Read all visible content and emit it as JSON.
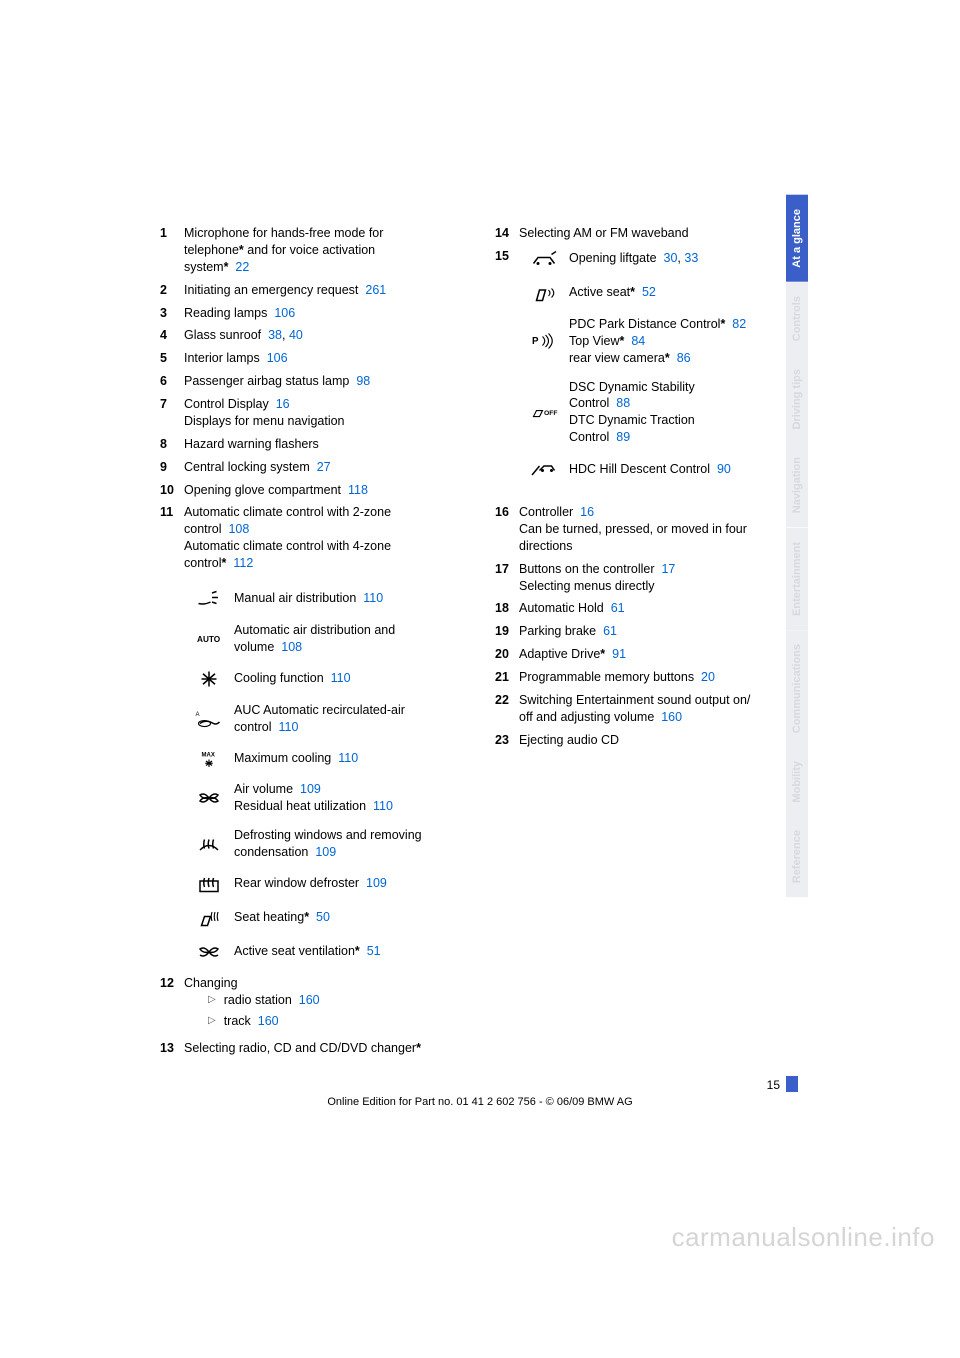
{
  "left": [
    {
      "n": "1",
      "lines": [
        {
          "t": "Microphone for hands-free mode for"
        },
        {
          "t": "telephone",
          "star": true,
          "after": " and for voice activation"
        },
        {
          "t": "system",
          "star": true,
          "link": "22"
        }
      ]
    },
    {
      "n": "2",
      "lines": [
        {
          "t": "Initiating an emergency request",
          "link": "261"
        }
      ]
    },
    {
      "n": "3",
      "lines": [
        {
          "t": "Reading lamps",
          "link": "106"
        }
      ]
    },
    {
      "n": "4",
      "lines": [
        {
          "t": "Glass sunroof",
          "link": "38",
          "link2": "40"
        }
      ]
    },
    {
      "n": "5",
      "lines": [
        {
          "t": "Interior lamps",
          "link": "106"
        }
      ]
    },
    {
      "n": "6",
      "lines": [
        {
          "t": "Passenger airbag status lamp",
          "link": "98"
        }
      ]
    },
    {
      "n": "7",
      "lines": [
        {
          "t": "Control Display",
          "link": "16"
        },
        {
          "t": "Displays for menu navigation"
        }
      ]
    },
    {
      "n": "8",
      "lines": [
        {
          "t": "Hazard warning flashers"
        }
      ]
    },
    {
      "n": "9",
      "lines": [
        {
          "t": "Central locking system",
          "link": "27"
        }
      ]
    },
    {
      "n": "10",
      "lines": [
        {
          "t": "Opening glove compartment",
          "link": "118"
        }
      ]
    },
    {
      "n": "11",
      "lines": [
        {
          "t": "Automatic climate control with 2-zone"
        },
        {
          "t": "control",
          "link": "108"
        },
        {
          "t": "Automatic climate control with 4-zone"
        },
        {
          "t": "control",
          "star": true,
          "link": "112"
        }
      ]
    }
  ],
  "icons_left": [
    {
      "icon": "air-dist",
      "lines": [
        {
          "t": "Manual air distribution",
          "link": "110"
        }
      ]
    },
    {
      "icon": "auto",
      "lines": [
        {
          "t": "Automatic air distribution and"
        },
        {
          "t": "volume",
          "link": "108"
        }
      ]
    },
    {
      "icon": "snow",
      "lines": [
        {
          "t": "Cooling function",
          "link": "110"
        }
      ]
    },
    {
      "icon": "recirc",
      "lines": [
        {
          "t": "AUC Automatic recirculated-air"
        },
        {
          "t": "control",
          "link": "110"
        }
      ]
    },
    {
      "icon": "max",
      "lines": [
        {
          "t": "Maximum cooling",
          "link": "110"
        }
      ]
    },
    {
      "icon": "fan",
      "lines": [
        {
          "t": "Air volume",
          "link": "109"
        },
        {
          "t": "Residual heat utilization",
          "link": "110"
        }
      ]
    },
    {
      "icon": "defrost-front",
      "lines": [
        {
          "t": "Defrosting windows and removing"
        },
        {
          "t": "condensation",
          "link": "109"
        }
      ]
    },
    {
      "icon": "defrost-rear",
      "lines": [
        {
          "t": "Rear window defroster",
          "link": "109"
        }
      ]
    },
    {
      "icon": "seat-heat",
      "lines": [
        {
          "t": "Seat heating",
          "star": true,
          "link": "50"
        }
      ]
    },
    {
      "icon": "seat-vent",
      "lines": [
        {
          "t": "Active seat ventilation",
          "star": true,
          "link": "51"
        }
      ]
    }
  ],
  "left2": [
    {
      "n": "12",
      "lines": [
        {
          "t": "Changing"
        }
      ],
      "bullets": [
        {
          "t": "radio station",
          "link": "160"
        },
        {
          "t": "track",
          "link": "160"
        }
      ]
    },
    {
      "n": "13",
      "lines": [
        {
          "t": "Selecting radio, CD and CD/DVD changer",
          "star": true
        }
      ]
    }
  ],
  "right": [
    {
      "n": "14",
      "lines": [
        {
          "t": "Selecting AM or FM waveband"
        }
      ]
    }
  ],
  "icons_right": [
    {
      "icon": "liftgate",
      "lines": [
        {
          "t": "Opening liftgate",
          "link": "30",
          "link2": "33"
        }
      ]
    },
    {
      "icon": "active-seat",
      "lines": [
        {
          "t": "Active seat",
          "star": true,
          "link": "52"
        }
      ]
    },
    {
      "icon": "pdc",
      "lines": [
        {
          "t": "PDC Park Distance Control",
          "star": true,
          "link": "82"
        },
        {
          "t": "Top View",
          "star": true,
          "link": "84"
        },
        {
          "t": "rear view camera",
          "star": true,
          "link": "86"
        }
      ]
    },
    {
      "icon": "dsc",
      "lines": [
        {
          "t": "DSC Dynamic Stability"
        },
        {
          "t": "Control",
          "link": "88"
        },
        {
          "t": "DTC Dynamic Traction"
        },
        {
          "t": "Control",
          "link": "89"
        }
      ]
    },
    {
      "icon": "hdc",
      "lines": [
        {
          "t": "HDC Hill Descent Control",
          "link": "90"
        }
      ]
    }
  ],
  "right2": [
    {
      "n": "16",
      "lines": [
        {
          "t": "Controller",
          "link": "16"
        },
        {
          "t": "Can be turned, pressed, or moved in four"
        },
        {
          "t": "directions"
        }
      ]
    },
    {
      "n": "17",
      "lines": [
        {
          "t": "Buttons on the controller",
          "link": "17"
        },
        {
          "t": "Selecting menus directly"
        }
      ]
    },
    {
      "n": "18",
      "lines": [
        {
          "t": "Automatic Hold",
          "link": "61"
        }
      ]
    },
    {
      "n": "19",
      "lines": [
        {
          "t": "Parking brake",
          "link": "61"
        }
      ]
    },
    {
      "n": "20",
      "lines": [
        {
          "t": "Adaptive Drive",
          "star": true,
          "link": "91"
        }
      ]
    },
    {
      "n": "21",
      "lines": [
        {
          "t": "Programmable memory buttons",
          "link": "20"
        }
      ]
    },
    {
      "n": "22",
      "lines": [
        {
          "t": "Switching Entertainment sound output on/"
        },
        {
          "t": "off and adjusting volume",
          "link": "160"
        }
      ]
    },
    {
      "n": "23",
      "lines": [
        {
          "t": "Ejecting audio CD"
        }
      ]
    }
  ],
  "right_label15": "15",
  "tabs": [
    {
      "label": "At a glance",
      "active": true
    },
    {
      "label": "Controls",
      "active": false
    },
    {
      "label": "Driving tips",
      "active": false
    },
    {
      "label": "Navigation",
      "active": false
    },
    {
      "label": "Entertainment",
      "active": false
    },
    {
      "label": "Communications",
      "active": false
    },
    {
      "label": "Mobility",
      "active": false
    },
    {
      "label": "Reference",
      "active": false
    }
  ],
  "page_number": "15",
  "footer": "Online Edition for Part no. 01 41 2 602 756 - © 06/09 BMW AG",
  "watermark": "carmanualsonline.info"
}
